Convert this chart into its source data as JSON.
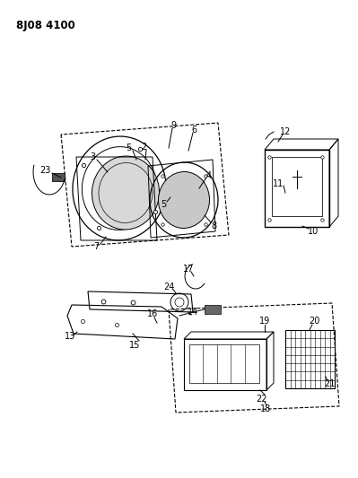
{
  "title": "8J08 4100",
  "background_color": "#ffffff",
  "figsize": [
    3.99,
    5.33
  ],
  "dpi": 100
}
